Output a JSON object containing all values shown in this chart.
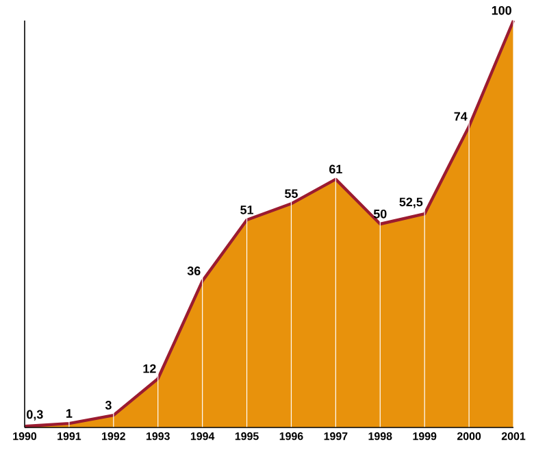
{
  "chart_data": {
    "type": "area",
    "categories": [
      "1990",
      "1991",
      "1992",
      "1993",
      "1994",
      "1995",
      "1996",
      "1997",
      "1998",
      "1999",
      "2000",
      "2001"
    ],
    "values": [
      0.3,
      1,
      3,
      12,
      36,
      51,
      55,
      61,
      50,
      52.5,
      74,
      100
    ],
    "value_labels": [
      "0,3",
      "1",
      "3",
      "12",
      "36",
      "51",
      "55",
      "61",
      "50",
      "52,5",
      "74",
      "100"
    ],
    "color": "#e8920c",
    "grid": "x"
  }
}
